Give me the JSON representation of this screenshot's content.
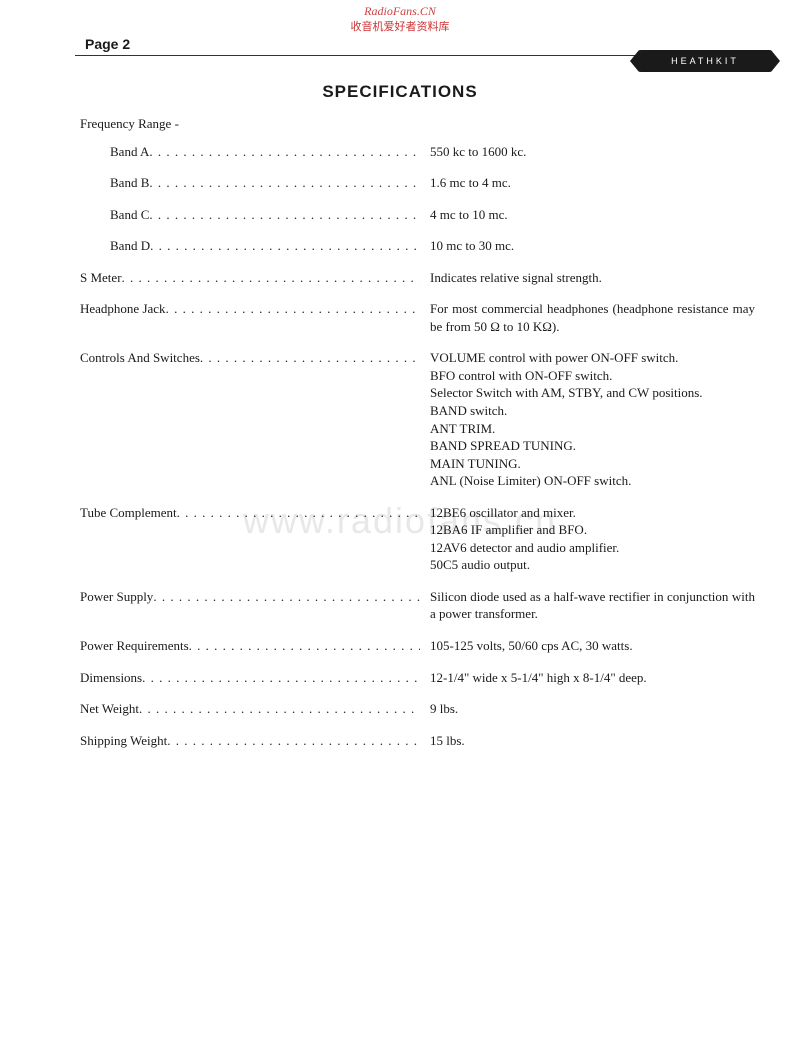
{
  "watermark": {
    "line1": "RadioFans.CN",
    "line2": "收音机爱好者资料库",
    "center": "www.radiofans.cn"
  },
  "page_number": "Page 2",
  "logo_text": "HEATHKIT",
  "title": "SPECIFICATIONS",
  "specs": {
    "freq_range_label": "Frequency Range -",
    "band_a_label": "Band A",
    "band_a_value": "550 kc to 1600 kc.",
    "band_b_label": "Band B",
    "band_b_value": "1.6 mc to 4 mc.",
    "band_c_label": "Band C",
    "band_c_value": "4 mc to 10 mc.",
    "band_d_label": "Band D",
    "band_d_value": "10 mc to 30 mc.",
    "smeter_label": "S Meter",
    "smeter_value": "Indicates relative signal strength.",
    "headphone_label": "Headphone Jack",
    "headphone_value": "For most commercial headphones (headphone resistance may be from 50 Ω to 10 KΩ).",
    "controls_label": "Controls And Switches",
    "controls_l1": "VOLUME control with power ON-OFF switch.",
    "controls_l2": "BFO control with ON-OFF switch.",
    "controls_l3": "Selector Switch with AM, STBY, and CW positions.",
    "controls_l4": "BAND switch.",
    "controls_l5": "ANT TRIM.",
    "controls_l6": "BAND SPREAD TUNING.",
    "controls_l7": "MAIN TUNING.",
    "controls_l8": "ANL (Noise Limiter) ON-OFF switch.",
    "tube_label": "Tube Complement",
    "tube_l1": "12BE6 oscillator and mixer.",
    "tube_l2": "12BA6 IF amplifier and BFO.",
    "tube_l3": "12AV6 detector and audio amplifier.",
    "tube_l4": "50C5 audio output.",
    "power_supply_label": "Power Supply",
    "power_supply_value": "Silicon diode used as a half-wave rectifier in conjunction with a power transformer.",
    "power_req_label": "Power Requirements",
    "power_req_value": "105-125 volts, 50/60 cps AC, 30 watts.",
    "dimensions_label": "Dimensions",
    "dimensions_value": "12-1/4\" wide x 5-1/4\" high x 8-1/4\" deep.",
    "net_weight_label": "Net Weight",
    "net_weight_value": "9 lbs.",
    "shipping_weight_label": "Shipping Weight",
    "shipping_weight_value": "15 lbs."
  }
}
